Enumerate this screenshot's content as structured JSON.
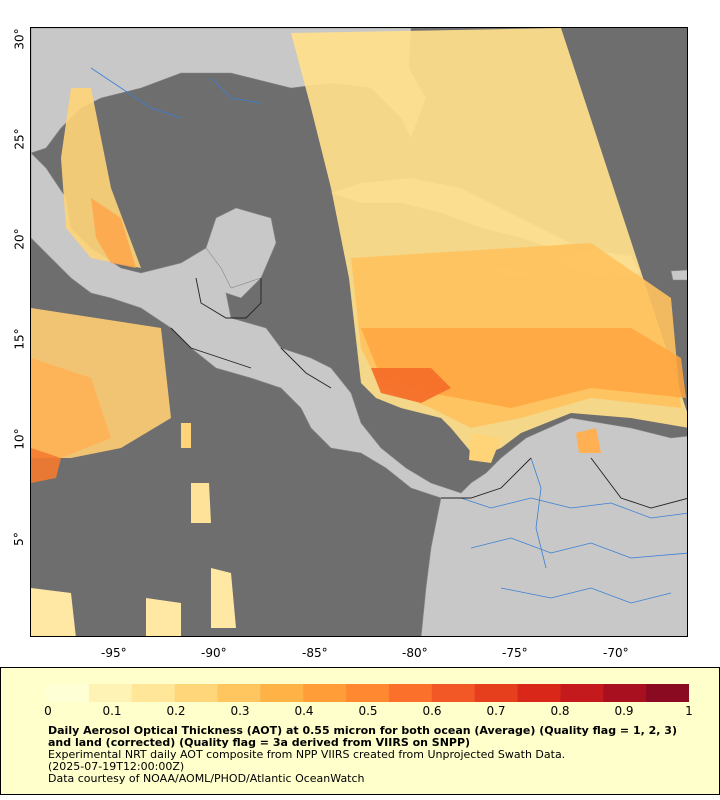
{
  "map": {
    "x_ticks": [
      "-95°",
      "-90°",
      "-85°",
      "-80°",
      "-75°",
      "-70°"
    ],
    "y_ticks": [
      "30°",
      "25°",
      "20°",
      "15°",
      "10°",
      "5°"
    ],
    "x_range": [
      -99.2,
      -66.4
    ],
    "y_range": [
      0.2,
      30.7
    ],
    "land_color": "#c8c8c8",
    "nodata_color": "#6e6e6e",
    "water_line_color": "#3b7fd6"
  },
  "legend": {
    "ticks": [
      "0",
      "0.1",
      "0.2",
      "0.3",
      "0.4",
      "0.5",
      "0.6",
      "0.7",
      "0.8",
      "0.9",
      "1"
    ],
    "title": "Daily Aerosol Optical Thickness (AOT) at 0.55 micron for both ocean (Average) (Quality flag = 1, 2, 3) and land (corrected) (Quality flag = 3a derived from VIIRS on SNPP)",
    "line1": "Experimental NRT daily AOT composite from NPP VIIRS created from Unprojected Swath Data.",
    "line2": "(2025-07-19T12:00:00Z)",
    "line3": "Data courtesy of NOAA/AOML/PHOD/Atlantic OceanWatch",
    "colors": [
      "#ffffd6",
      "#fff2b5",
      "#ffe699",
      "#ffd77a",
      "#ffc55e",
      "#ffb347",
      "#ff9e38",
      "#ff8830",
      "#fb702a",
      "#f25825",
      "#e63f1e",
      "#d9281a",
      "#c41a1d",
      "#a80f1f",
      "#8a0a22"
    ]
  }
}
